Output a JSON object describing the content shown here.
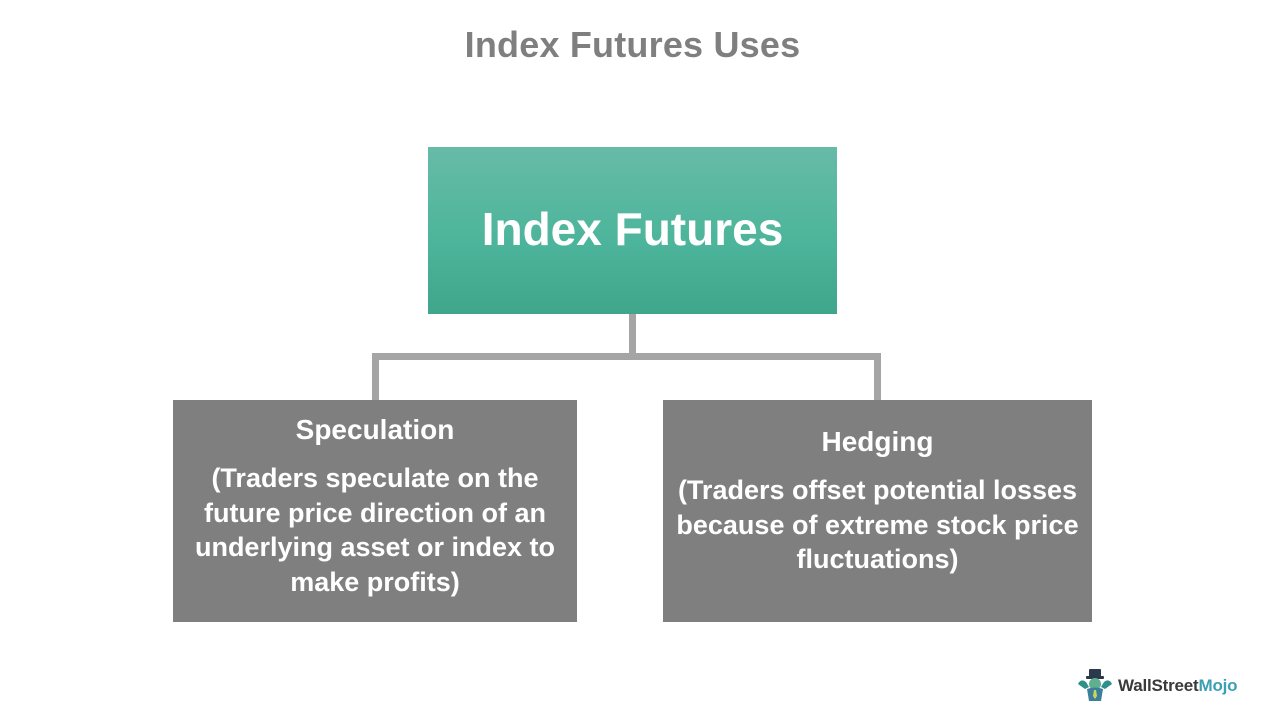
{
  "title": "Index Futures Uses",
  "root": {
    "label": "Index Futures"
  },
  "children": [
    {
      "title": "Speculation",
      "description": "(Traders speculate on the future price direction of an underlying asset or index to make profits)"
    },
    {
      "title": "Hedging",
      "description": "(Traders offset potential losses because of extreme stock price fluctuations)"
    }
  ],
  "logo": {
    "brand_main": "WallStreet",
    "brand_accent": "Mojo",
    "icon": "wallstreetmojo-mascot-icon"
  },
  "colors": {
    "root_fill": "#4db59b",
    "child_fill": "#7f7f7f",
    "connector": "#a5a5a5",
    "title_text": "#7f7f7f",
    "logo_accent": "#3d9fb3"
  }
}
